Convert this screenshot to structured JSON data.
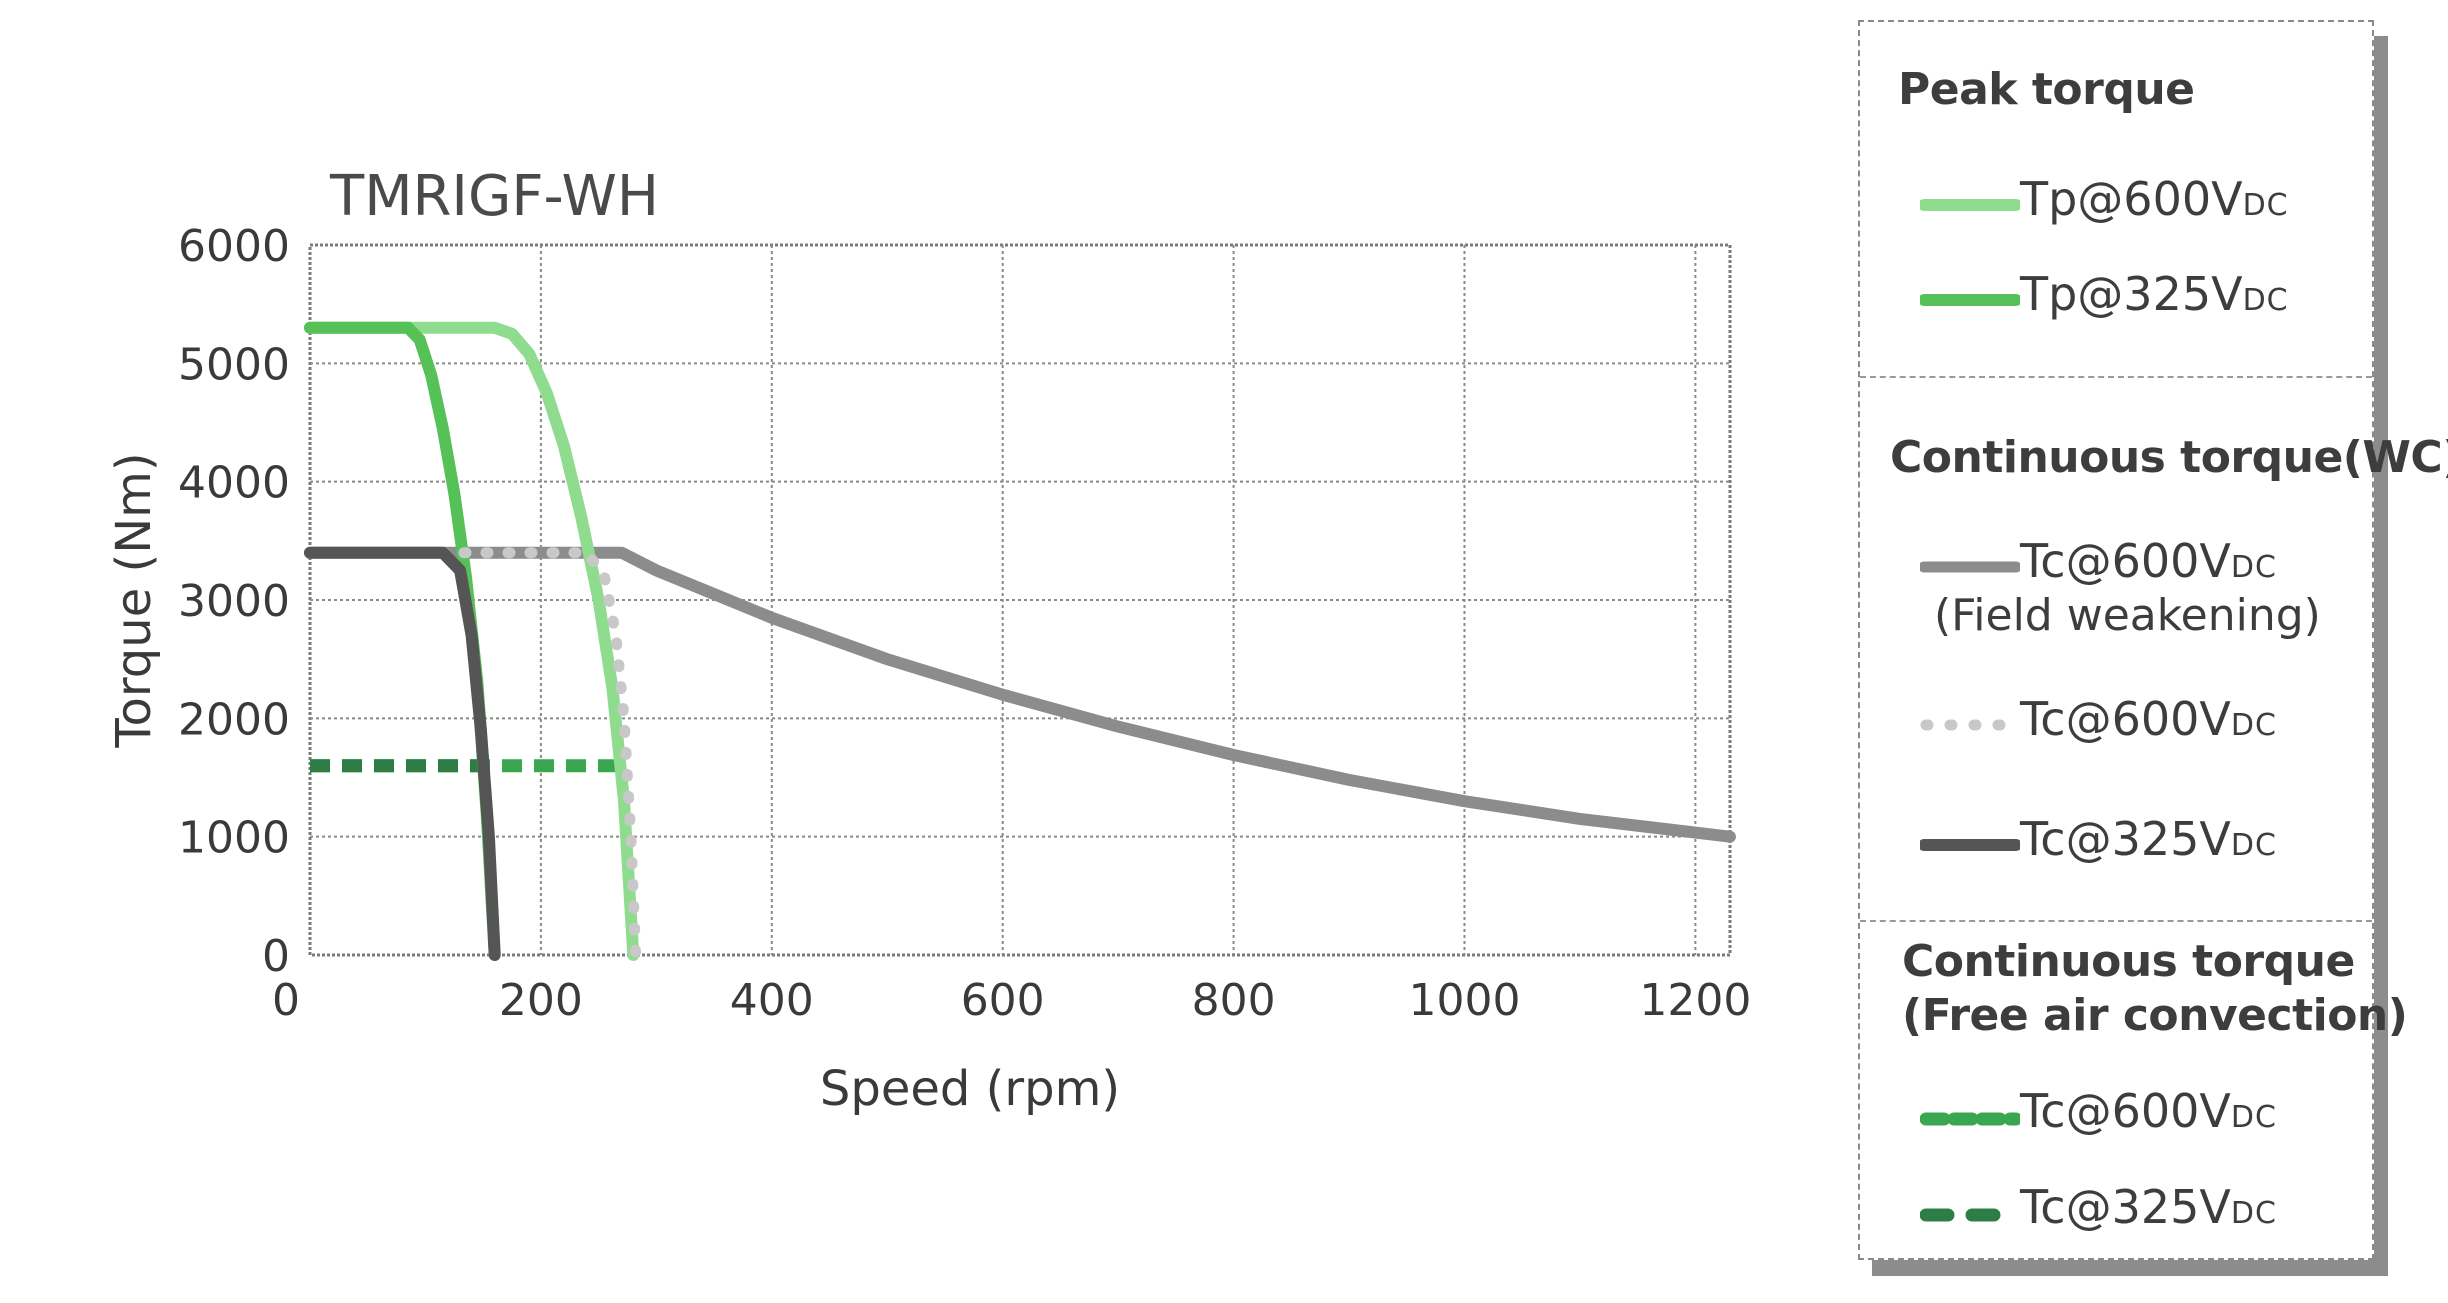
{
  "chart_data": {
    "type": "line",
    "title": "TMRIGF-WH",
    "xlabel": "Speed (rpm)",
    "ylabel": "Torque (Nm)",
    "xlim": [
      0,
      1230
    ],
    "ylim": [
      0,
      6000
    ],
    "xticks": [
      0,
      200,
      400,
      600,
      800,
      1000,
      1200
    ],
    "yticks": [
      0,
      1000,
      2000,
      3000,
      4000,
      5000,
      6000
    ],
    "grid": true,
    "legend_position": "right",
    "series": [
      {
        "name": "Tp@600VDC",
        "group": "Peak torque",
        "color": "#8fdc8f",
        "style": "solid",
        "x": [
          0,
          100,
          160,
          175,
          190,
          205,
          220,
          235,
          250,
          262,
          272,
          280
        ],
        "y": [
          5300,
          5300,
          5300,
          5250,
          5080,
          4750,
          4300,
          3700,
          3000,
          2250,
          1300,
          0
        ]
      },
      {
        "name": "Tp@325VDC",
        "group": "Peak torque",
        "color": "#56c157",
        "style": "solid",
        "x": [
          0,
          60,
          85,
          95,
          105,
          115,
          125,
          135,
          145,
          153,
          160
        ],
        "y": [
          5300,
          5300,
          5300,
          5200,
          4900,
          4450,
          3900,
          3200,
          2300,
          1200,
          0
        ]
      },
      {
        "name": "Tc@600VDC",
        "sublabel": "(Field weakening)",
        "group": "Continuous torque(WC)",
        "color": "#8c8c8c",
        "style": "solid",
        "x": [
          0,
          100,
          200,
          270,
          300,
          350,
          400,
          500,
          600,
          700,
          800,
          900,
          1000,
          1100,
          1230
        ],
        "y": [
          3400,
          3400,
          3400,
          3400,
          3250,
          3050,
          2850,
          2500,
          2200,
          1930,
          1690,
          1480,
          1300,
          1150,
          1000
        ]
      },
      {
        "name": "Tc@600VDC",
        "group": "Continuous torque(WC)",
        "color": "#c8c8c8",
        "style": "dotted",
        "x": [
          0,
          240,
          255,
          265,
          272,
          278,
          282
        ],
        "y": [
          3400,
          3400,
          3200,
          2700,
          2000,
          1000,
          0
        ]
      },
      {
        "name": "Tc@325VDC",
        "group": "Continuous torque(WC)",
        "color": "#555555",
        "style": "solid",
        "x": [
          0,
          115,
          130,
          140,
          148,
          155,
          160
        ],
        "y": [
          3400,
          3400,
          3250,
          2700,
          1900,
          1000,
          0
        ]
      },
      {
        "name": "Tc@600VDC",
        "group": "Continuous torque (Free air convection)",
        "color": "#3aa64f",
        "style": "dashed",
        "x": [
          0,
          270
        ],
        "y": [
          1600,
          1600
        ]
      },
      {
        "name": "Tc@325VDC",
        "group": "Continuous torque (Free air convection)",
        "color": "#2e7d47",
        "style": "dashed",
        "x": [
          0,
          150
        ],
        "y": [
          1600,
          1600
        ]
      }
    ]
  },
  "legend": {
    "headings": [
      "Peak torque",
      "Continuous torque(WC)",
      "Continuous torque",
      "(Free air convection)"
    ],
    "subscript": "DC"
  }
}
